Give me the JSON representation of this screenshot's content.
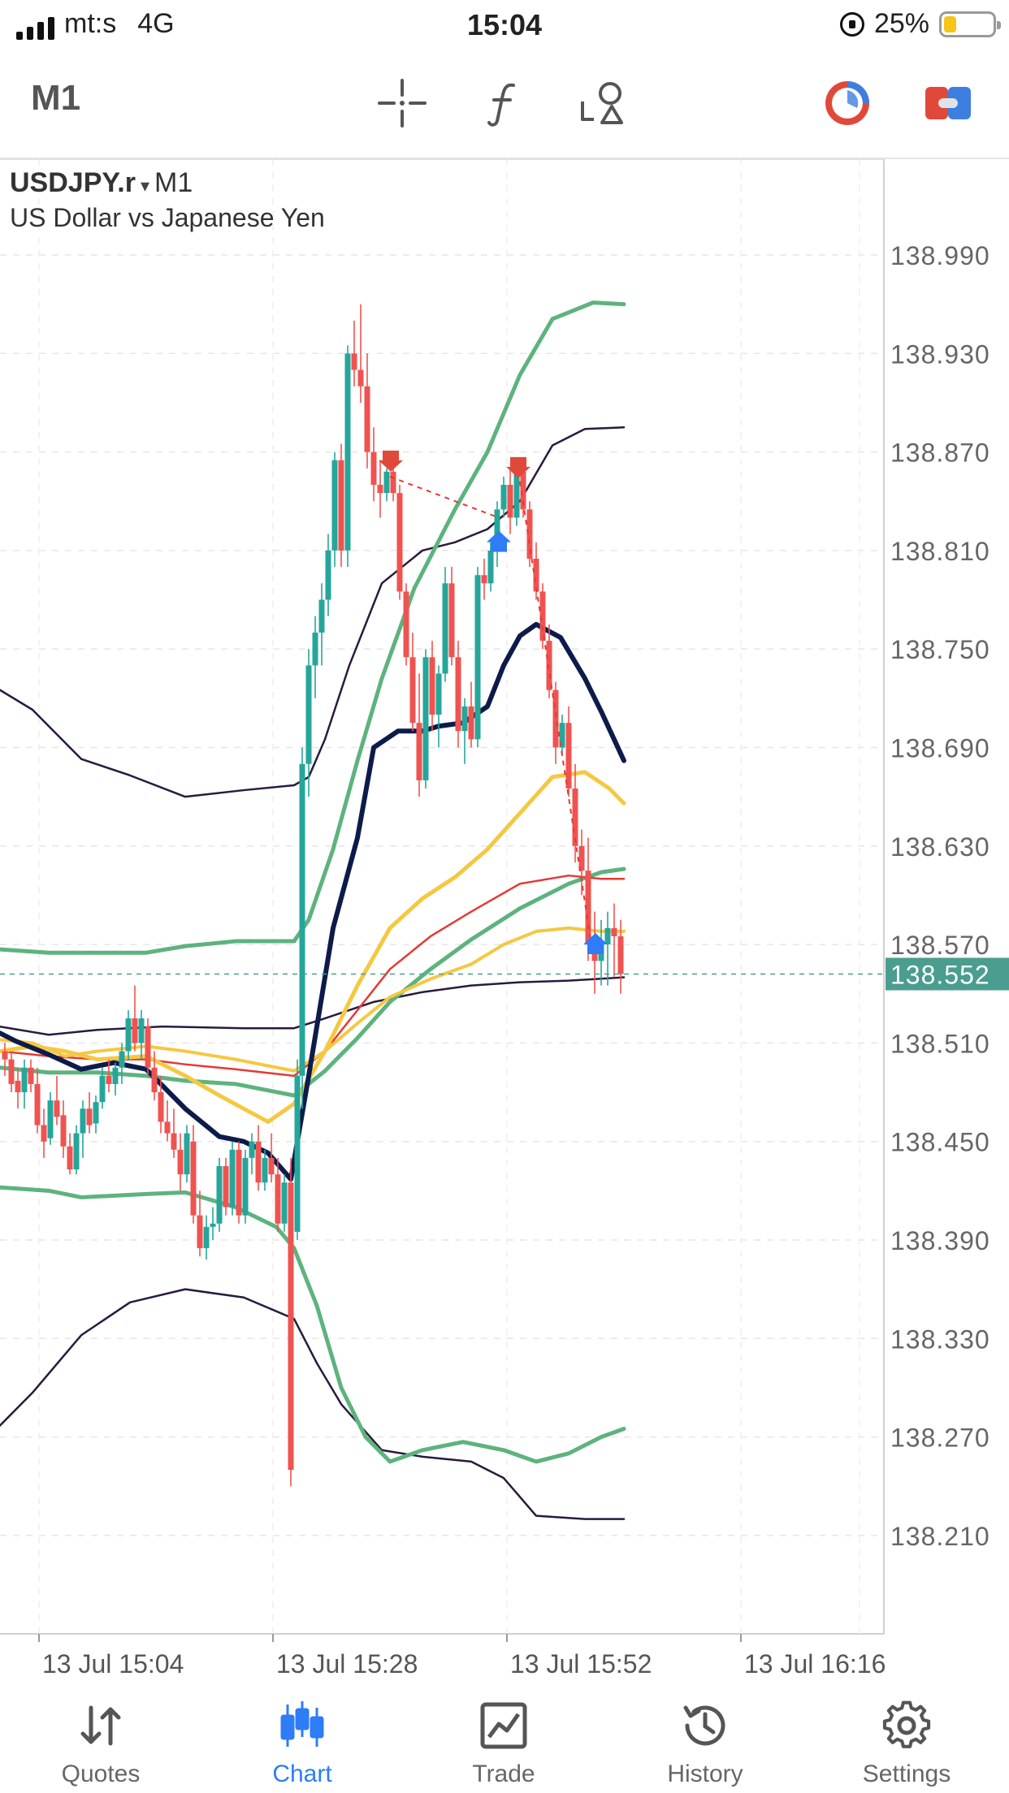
{
  "status_bar": {
    "carrier": "mt:s",
    "network": "4G",
    "time": "15:04",
    "battery_percent": "25%",
    "battery_level": 0.25
  },
  "toolbar": {
    "timeframe": "M1",
    "icons": [
      "crosshair-icon",
      "indicators-icon",
      "objects-icon",
      "depth-icon",
      "trade-toggle-icon"
    ]
  },
  "chart": {
    "symbol": "USDJPY.r",
    "dropdown_glyph": "▾",
    "period": "M1",
    "description": "US Dollar vs Japanese Yen",
    "price_labels": [
      "138.990",
      "138.930",
      "138.870",
      "138.810",
      "138.750",
      "138.690",
      "138.630",
      "138.570",
      "138.510",
      "138.450",
      "138.390",
      "138.330",
      "138.270",
      "138.210"
    ],
    "current_price": "138.552",
    "current_price_value": 138.552,
    "time_labels": [
      "13 Jul 15:04",
      "13 Jul 15:28",
      "13 Jul 15:52",
      "13 Jul 16:16"
    ],
    "colors": {
      "bull": "#26a69a",
      "bear": "#ef5350",
      "bollinger_green": "#5db37e",
      "envelope_purple": "#2a1a3e",
      "ma_navy": "#0d1b4a",
      "ma_yellow": "#f5c842",
      "ma_red": "#e53935",
      "current_price_bg": "#4a9d8f"
    }
  },
  "nav": {
    "items": [
      {
        "label": "Quotes",
        "icon": "quotes-icon"
      },
      {
        "label": "Chart",
        "icon": "chart-icon"
      },
      {
        "label": "Trade",
        "icon": "trade-icon"
      },
      {
        "label": "History",
        "icon": "history-icon"
      },
      {
        "label": "Settings",
        "icon": "settings-icon"
      }
    ],
    "active": "Chart",
    "active_color": "#2e7cf6"
  }
}
